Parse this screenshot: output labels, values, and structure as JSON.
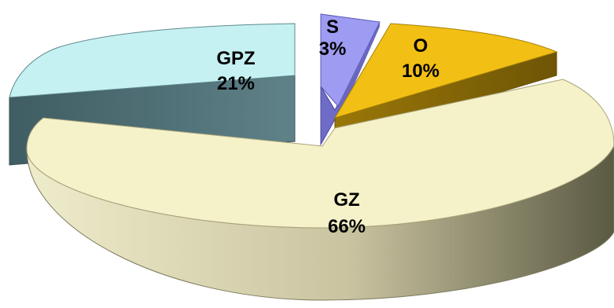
{
  "chart_data": {
    "type": "pie",
    "title": "",
    "style": "3d-exploded",
    "slices": [
      {
        "name": "GZ",
        "value": 66,
        "pct_label": "66%",
        "color": "#f5f2c9",
        "dark_color": "#6b6a50"
      },
      {
        "name": "GPZ",
        "value": 21,
        "pct_label": "21%",
        "color": "#c6f1f2",
        "dark_color": "#4f6f74"
      },
      {
        "name": "S",
        "value": 3,
        "pct_label": "3%",
        "color": "#9e9cf2",
        "dark_color": "#5f5caa"
      },
      {
        "name": "O",
        "value": 10,
        "pct_label": "10%",
        "color": "#f2bf14",
        "dark_color": "#8a6a08"
      }
    ]
  }
}
